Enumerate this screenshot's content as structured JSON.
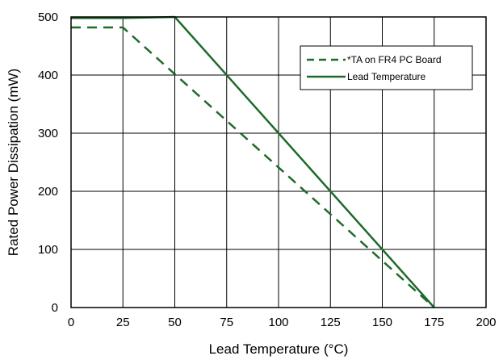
{
  "chart_data": {
    "type": "line",
    "xlabel": "Lead Temperature (°C)",
    "ylabel": "Rated Power Dissipation (mW)",
    "xlim": [
      0,
      200
    ],
    "ylim": [
      0,
      500
    ],
    "xticks": [
      0,
      25,
      50,
      75,
      100,
      125,
      150,
      175,
      200
    ],
    "yticks": [
      0,
      100,
      200,
      300,
      400,
      500
    ],
    "grid": true,
    "legend_position": "top-right",
    "series": [
      {
        "name": "*TA on FR4 PC Board",
        "style": "dashed",
        "color": "#1f6b2a",
        "points": [
          [
            0,
            482
          ],
          [
            25,
            482
          ],
          [
            175,
            0
          ]
        ]
      },
      {
        "name": "Lead Temperature",
        "style": "solid",
        "color": "#1f6b2a",
        "points": [
          [
            0,
            498
          ],
          [
            25,
            498
          ],
          [
            50,
            500
          ],
          [
            175,
            0
          ]
        ]
      }
    ]
  }
}
